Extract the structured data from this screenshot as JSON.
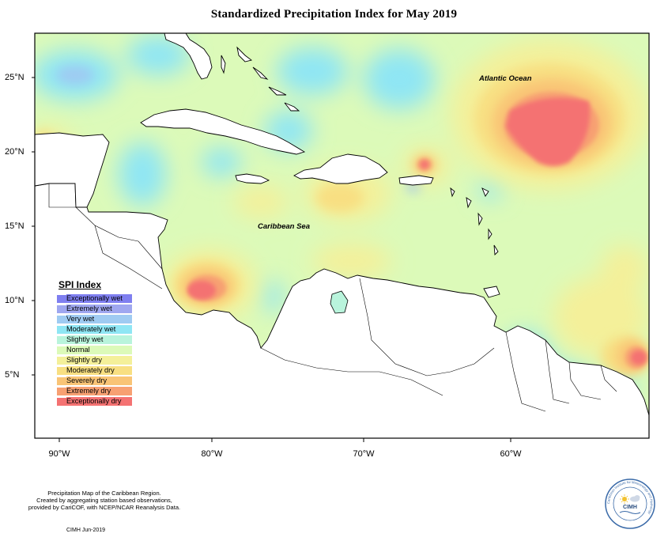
{
  "title": "Standardized Precipitation Index for May 2019",
  "latitude_labels": [
    "25°N",
    "20°N",
    "15°N",
    "10°N",
    "5°N"
  ],
  "longitude_labels": [
    "90°W",
    "80°W",
    "70°W",
    "60°W"
  ],
  "places": {
    "atlantic": "Atlantic Ocean",
    "caribbean": "Caribbean Sea"
  },
  "legend": {
    "title": "SPI Index",
    "items": [
      {
        "label": "Exceptionally wet",
        "color": "#7f7ff0"
      },
      {
        "label": "Extremely wet",
        "color": "#9fa7f0"
      },
      {
        "label": "Very wet",
        "color": "#9fcbf2"
      },
      {
        "label": "Moderately wet",
        "color": "#8fe6f4"
      },
      {
        "label": "Slightly wet",
        "color": "#b9f4dc"
      },
      {
        "label": "Normal",
        "color": "#dcfab9"
      },
      {
        "label": "Slightly dry",
        "color": "#f4f09a"
      },
      {
        "label": "Moderately dry",
        "color": "#f8df82"
      },
      {
        "label": "Severely dry",
        "color": "#f9c476"
      },
      {
        "label": "Extremely dry",
        "color": "#f7a072"
      },
      {
        "label": "Exceptionally dry",
        "color": "#f47272"
      }
    ]
  },
  "footer": {
    "line1": "Precipitation Map of the Caribbean Region.",
    "line2": "Created by aggregating station based observations,",
    "line3": "provided by CariCOF, with NCEP/NCAR Reanalysis Data.",
    "date": "CIMH Jun-2019"
  },
  "logo": {
    "text": "CIMH",
    "ring_text": "Caribbean Institute for Meteorology and Hydrology"
  }
}
